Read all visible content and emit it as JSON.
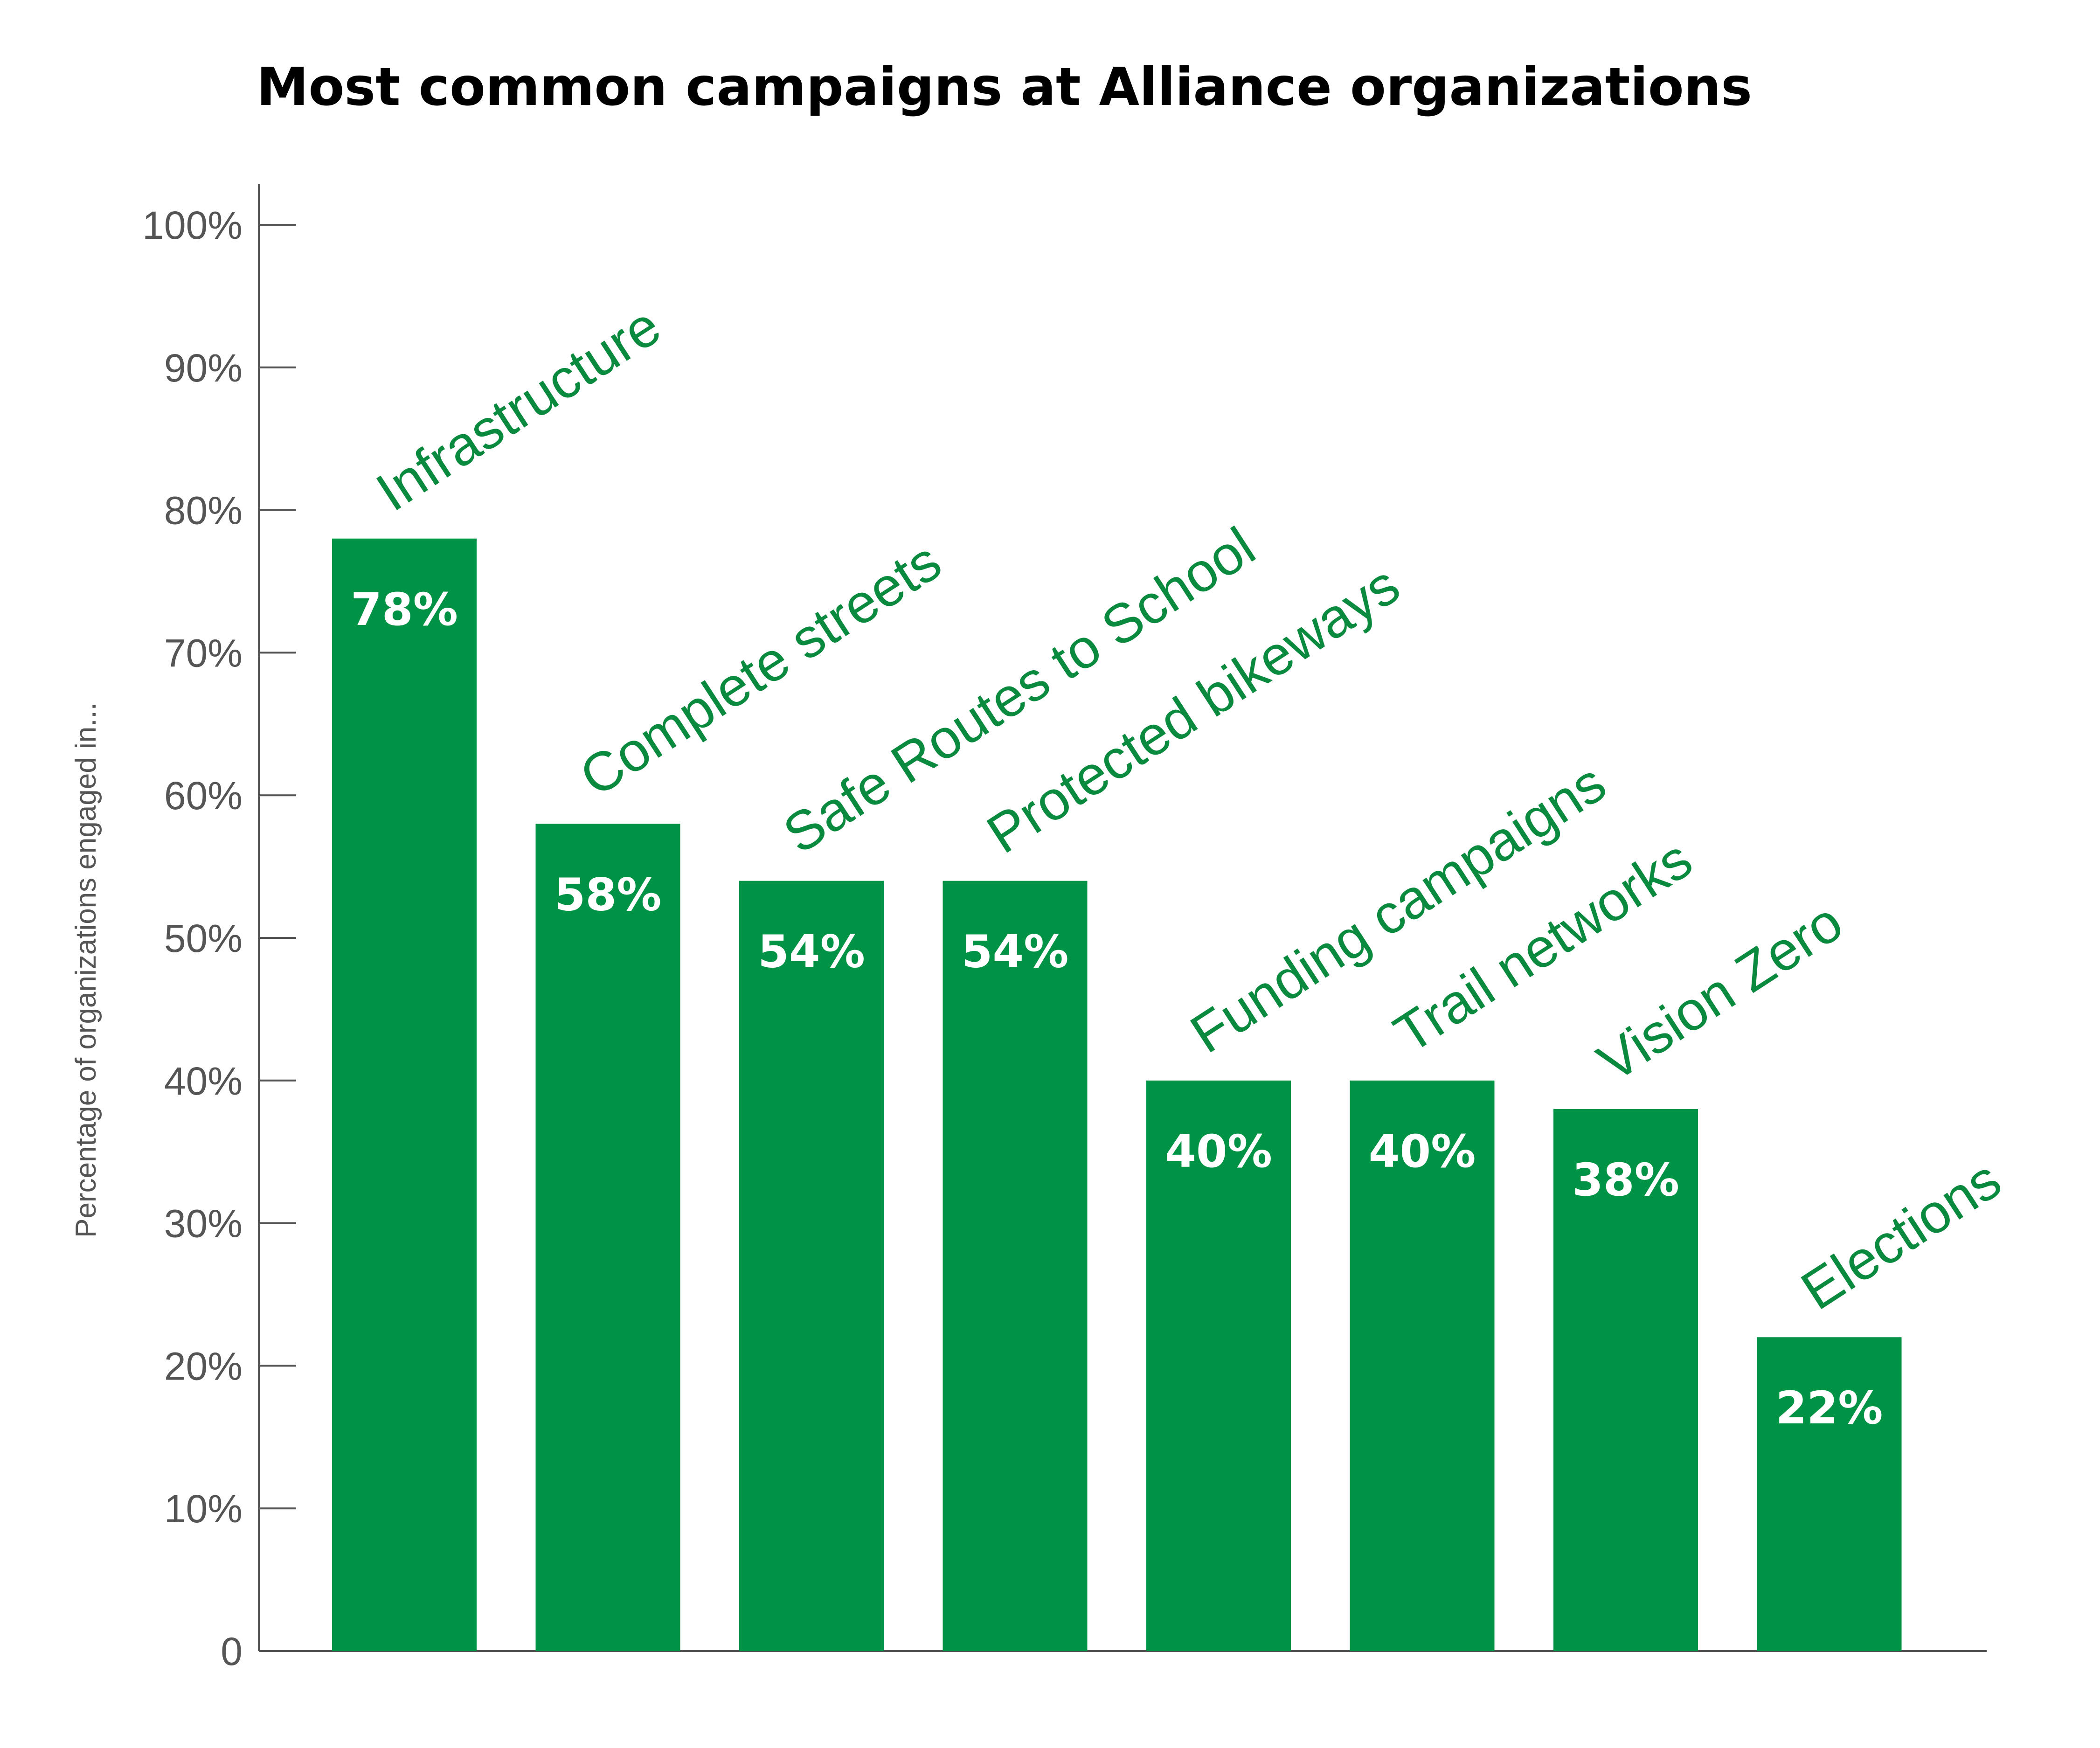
{
  "chart_data": {
    "type": "bar",
    "title": "Most common campaigns at Alliance organizations",
    "xlabel": "",
    "ylabel": "Percentage of organizations engaged in...",
    "ylim": [
      0,
      100
    ],
    "yticks": [
      0,
      10,
      20,
      30,
      40,
      50,
      60,
      70,
      80,
      90,
      100
    ],
    "ytick_labels": [
      "0",
      "10%",
      "20%",
      "30%",
      "40%",
      "50%",
      "60%",
      "70%",
      "80%",
      "90%",
      "100%"
    ],
    "categories": [
      "Infrastructure",
      "Complete streets",
      "Safe Routes to School",
      "Protected bikeways",
      "Funding campaigns",
      "Trail networks",
      "Vision Zero",
      "Elections"
    ],
    "values": [
      78,
      58,
      54,
      54,
      40,
      40,
      38,
      22
    ],
    "value_labels": [
      "78%",
      "58%",
      "54%",
      "54%",
      "40%",
      "40%",
      "38%",
      "22%"
    ],
    "grid": false,
    "legend": "none",
    "colors": {
      "bar": "#009245",
      "category_label": "#0a8a3e",
      "value_label": "#ffffff",
      "axis": "#555555",
      "title": "#000000"
    }
  }
}
